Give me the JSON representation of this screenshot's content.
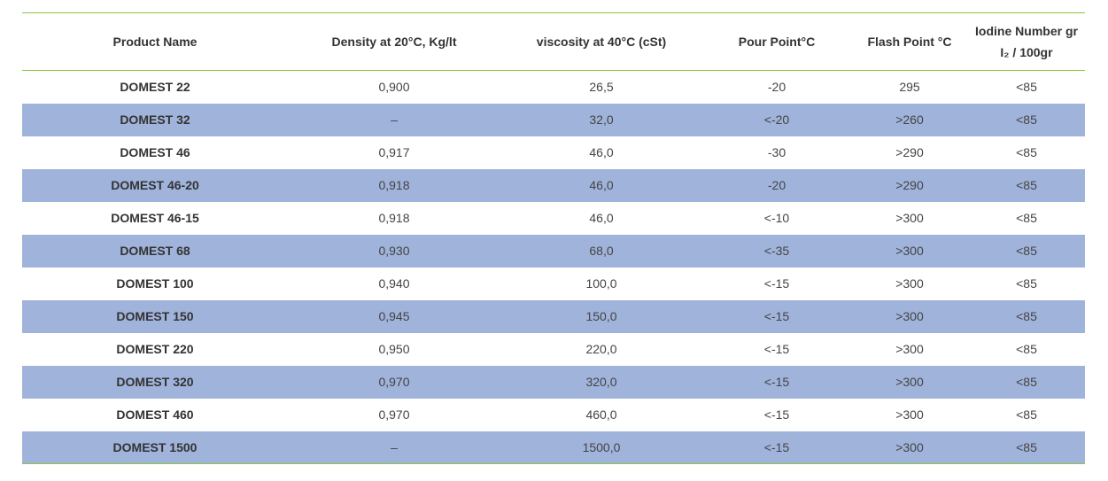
{
  "table": {
    "headers": [
      "Product Name",
      "Density at 20°C, Kg/lt",
      "viscosity at 40°C (cSt)",
      "Pour Point°C",
      "Flash Point °C",
      "Iodine Number gr I₂ / 100gr"
    ],
    "rows": [
      [
        "DOMEST 22",
        "0,900",
        "26,5",
        "-20",
        "295",
        "<85"
      ],
      [
        "DOMEST 32",
        "–",
        "32,0",
        "<-20",
        ">260",
        "<85"
      ],
      [
        "DOMEST 46",
        "0,917",
        "46,0",
        "-30",
        ">290",
        "<85"
      ],
      [
        "DOMEST 46-20",
        "0,918",
        "46,0",
        "-20",
        ">290",
        "<85"
      ],
      [
        "DOMEST 46-15",
        "0,918",
        "46,0",
        "<-10",
        ">300",
        "<85"
      ],
      [
        "DOMEST 68",
        "0,930",
        "68,0",
        "<-35",
        ">300",
        "<85"
      ],
      [
        "DOMEST 100",
        "0,940",
        "100,0",
        "<-15",
        ">300",
        "<85"
      ],
      [
        "DOMEST 150",
        "0,945",
        "150,0",
        "<-15",
        ">300",
        "<85"
      ],
      [
        "DOMEST 220",
        "0,950",
        "220,0",
        "<-15",
        ">300",
        "<85"
      ],
      [
        "DOMEST 320",
        "0,970",
        "320,0",
        "<-15",
        ">300",
        "<85"
      ],
      [
        "DOMEST 460",
        "0,970",
        "460,0",
        "<-15",
        ">300",
        "<85"
      ],
      [
        "DOMEST 1500",
        "–",
        "1500,0",
        "<-15",
        ">300",
        "<85"
      ]
    ]
  }
}
